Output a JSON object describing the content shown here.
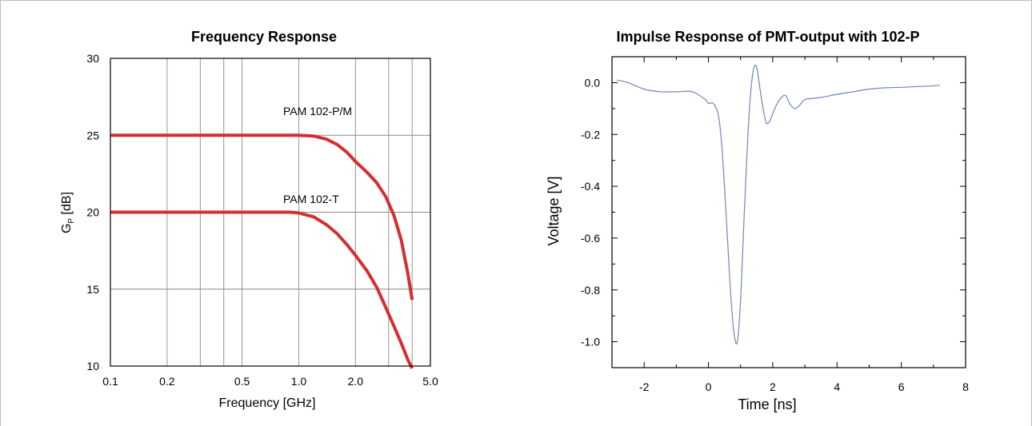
{
  "chart_data": [
    {
      "type": "line",
      "title": "Frequency Response",
      "xlabel": "Frequency [GHz]",
      "ylabel_main": "G",
      "ylabel_sub": "P",
      "ylabel_unit": " [dB]",
      "xscale": "log",
      "xlim": [
        0.1,
        5.0
      ],
      "ylim": [
        10,
        30
      ],
      "grid": true,
      "x_ticks": [
        0.1,
        0.2,
        0.5,
        1.0,
        2.0,
        5.0
      ],
      "x_tick_labels": [
        "0.1",
        "0.2",
        "0.5",
        "1.0",
        "2.0",
        "5.0"
      ],
      "x_gridlines": [
        0.2,
        0.3,
        0.4,
        0.5,
        1.0,
        2.0,
        3.0,
        4.0
      ],
      "y_ticks": [
        10,
        15,
        20,
        25,
        30
      ],
      "y_tick_labels": [
        "10",
        "15",
        "20",
        "25",
        "30"
      ],
      "series_color": "#d32f2f",
      "series": [
        {
          "label": "PAM 102-P/M",
          "x": [
            0.1,
            0.5,
            1.0,
            1.2,
            1.4,
            1.6,
            1.8,
            2.0,
            2.3,
            2.6,
            2.9,
            3.2,
            3.5,
            3.8,
            4.0
          ],
          "y": [
            25.0,
            25.0,
            25.0,
            24.95,
            24.75,
            24.4,
            23.9,
            23.3,
            22.6,
            21.9,
            21.0,
            19.8,
            18.2,
            16.0,
            14.3
          ]
        },
        {
          "label": "PAM 102-T",
          "x": [
            0.1,
            0.5,
            0.9,
            1.0,
            1.2,
            1.4,
            1.6,
            1.8,
            2.0,
            2.3,
            2.6,
            2.9,
            3.2,
            3.5,
            3.8,
            4.0
          ],
          "y": [
            20.0,
            20.0,
            20.0,
            19.95,
            19.7,
            19.2,
            18.6,
            17.9,
            17.2,
            16.2,
            15.1,
            13.8,
            12.6,
            11.5,
            10.4,
            9.6
          ]
        }
      ],
      "annotations": [
        "PAM 102-P/M",
        "PAM 102-T"
      ]
    },
    {
      "type": "line",
      "title": "Impulse Response of PMT-output with 102-P",
      "xlabel": "Time [ns]",
      "ylabel": "Voltage [V]",
      "xlim": [
        -3,
        8
      ],
      "ylim": [
        -1.1,
        0.1
      ],
      "grid": false,
      "x_ticks": [
        -2,
        0,
        2,
        4,
        6,
        8
      ],
      "x_tick_labels": [
        "-2",
        "0",
        "2",
        "4",
        "6",
        "8"
      ],
      "y_ticks": [
        0.0,
        -0.2,
        -0.4,
        -0.6,
        -0.8,
        -1.0
      ],
      "y_tick_labels": [
        "0.0",
        "-0.2",
        "-0.4",
        "-0.6",
        "-0.8",
        "-1.0"
      ],
      "series_color": "#6f86b8",
      "series": [
        {
          "x": [
            -2.85,
            -2.5,
            -2.0,
            -1.5,
            -1.0,
            -0.5,
            -0.1,
            0.0,
            0.15,
            0.3,
            0.4,
            0.5,
            0.6,
            0.7,
            0.8,
            0.9,
            1.0,
            1.1,
            1.2,
            1.3,
            1.4,
            1.5,
            1.6,
            1.7,
            1.8,
            1.9,
            2.0,
            2.1,
            2.25,
            2.4,
            2.55,
            2.7,
            2.85,
            3.0,
            3.3,
            3.6,
            4.0,
            4.5,
            5.0,
            5.5,
            6.0,
            6.5,
            7.0,
            7.2
          ],
          "y": [
            0.01,
            0.0,
            -0.025,
            -0.035,
            -0.035,
            -0.035,
            -0.065,
            -0.08,
            -0.08,
            -0.12,
            -0.22,
            -0.4,
            -0.62,
            -0.83,
            -0.97,
            -1.0,
            -0.84,
            -0.55,
            -0.27,
            -0.06,
            0.05,
            0.06,
            -0.02,
            -0.1,
            -0.155,
            -0.15,
            -0.12,
            -0.09,
            -0.06,
            -0.05,
            -0.085,
            -0.1,
            -0.085,
            -0.065,
            -0.06,
            -0.055,
            -0.045,
            -0.035,
            -0.025,
            -0.02,
            -0.018,
            -0.015,
            -0.012,
            -0.01
          ]
        }
      ]
    }
  ]
}
